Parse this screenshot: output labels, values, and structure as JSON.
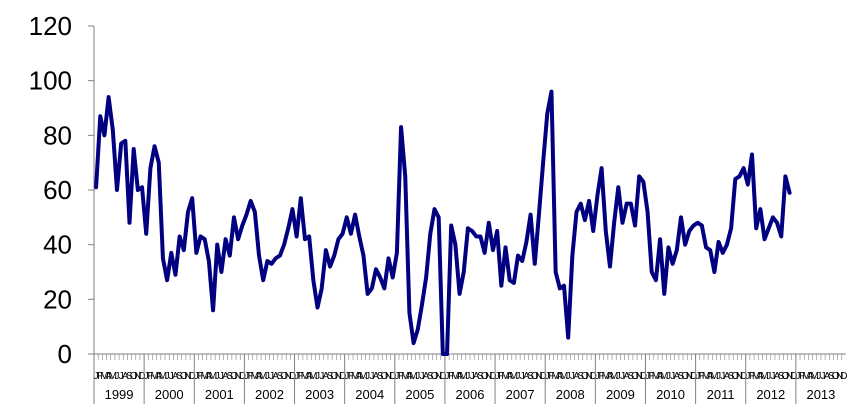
{
  "chart_data": {
    "type": "line",
    "title": "",
    "xlabel": "",
    "ylabel": "",
    "ylim": [
      0,
      120
    ],
    "y_ticks": [
      "0",
      "20",
      "40",
      "60",
      "80",
      "100",
      "120"
    ],
    "grid": false,
    "legend": "none",
    "colors": {
      "line": "#000080",
      "axis": "#808080",
      "text": "#000000"
    },
    "x_start": "1999-01",
    "month_tick_labels": [
      "J",
      "F",
      "M",
      "A",
      "M",
      "J",
      "J",
      "A",
      "S",
      "O",
      "N",
      "D"
    ],
    "years": [
      "1999",
      "2000",
      "2001",
      "2002",
      "2003",
      "2004",
      "2005",
      "2006",
      "2007",
      "2008",
      "2009",
      "2010",
      "2011",
      "2012",
      "2013"
    ],
    "series": [
      {
        "values": [
          61,
          87,
          80,
          94,
          82,
          60,
          77,
          78,
          48,
          75,
          60,
          61,
          44,
          68,
          76,
          70,
          35,
          27,
          37,
          29,
          43,
          38,
          52,
          57,
          37,
          43,
          42,
          34,
          16,
          40,
          30,
          42,
          36,
          50,
          42,
          47,
          51,
          56,
          52,
          36,
          27,
          34,
          33,
          35,
          36,
          40,
          46,
          53,
          43,
          57,
          42,
          43,
          27,
          17,
          24,
          38,
          32,
          36,
          42,
          44,
          50,
          44,
          51,
          43,
          36,
          22,
          24,
          31,
          28,
          24,
          35,
          28,
          37,
          83,
          65,
          15,
          4,
          9,
          18,
          28,
          44,
          53,
          50,
          0,
          0,
          47,
          40,
          22,
          30,
          46,
          45,
          43,
          43,
          37,
          48,
          38,
          45,
          25,
          39,
          27,
          26,
          36,
          34,
          41,
          51,
          33,
          51,
          70,
          88,
          96,
          30,
          24,
          25,
          6,
          36,
          52,
          55,
          49,
          56,
          45,
          58,
          68,
          45,
          32,
          48,
          61,
          48,
          55,
          55,
          47,
          65,
          63,
          52,
          30,
          27,
          42,
          22,
          39,
          33,
          38,
          50,
          40,
          45,
          47,
          48,
          47,
          39,
          38,
          30,
          41,
          37,
          40,
          46,
          64,
          65,
          68,
          62,
          73,
          46,
          53,
          42,
          46,
          50,
          48,
          43,
          65,
          59
        ]
      }
    ]
  }
}
